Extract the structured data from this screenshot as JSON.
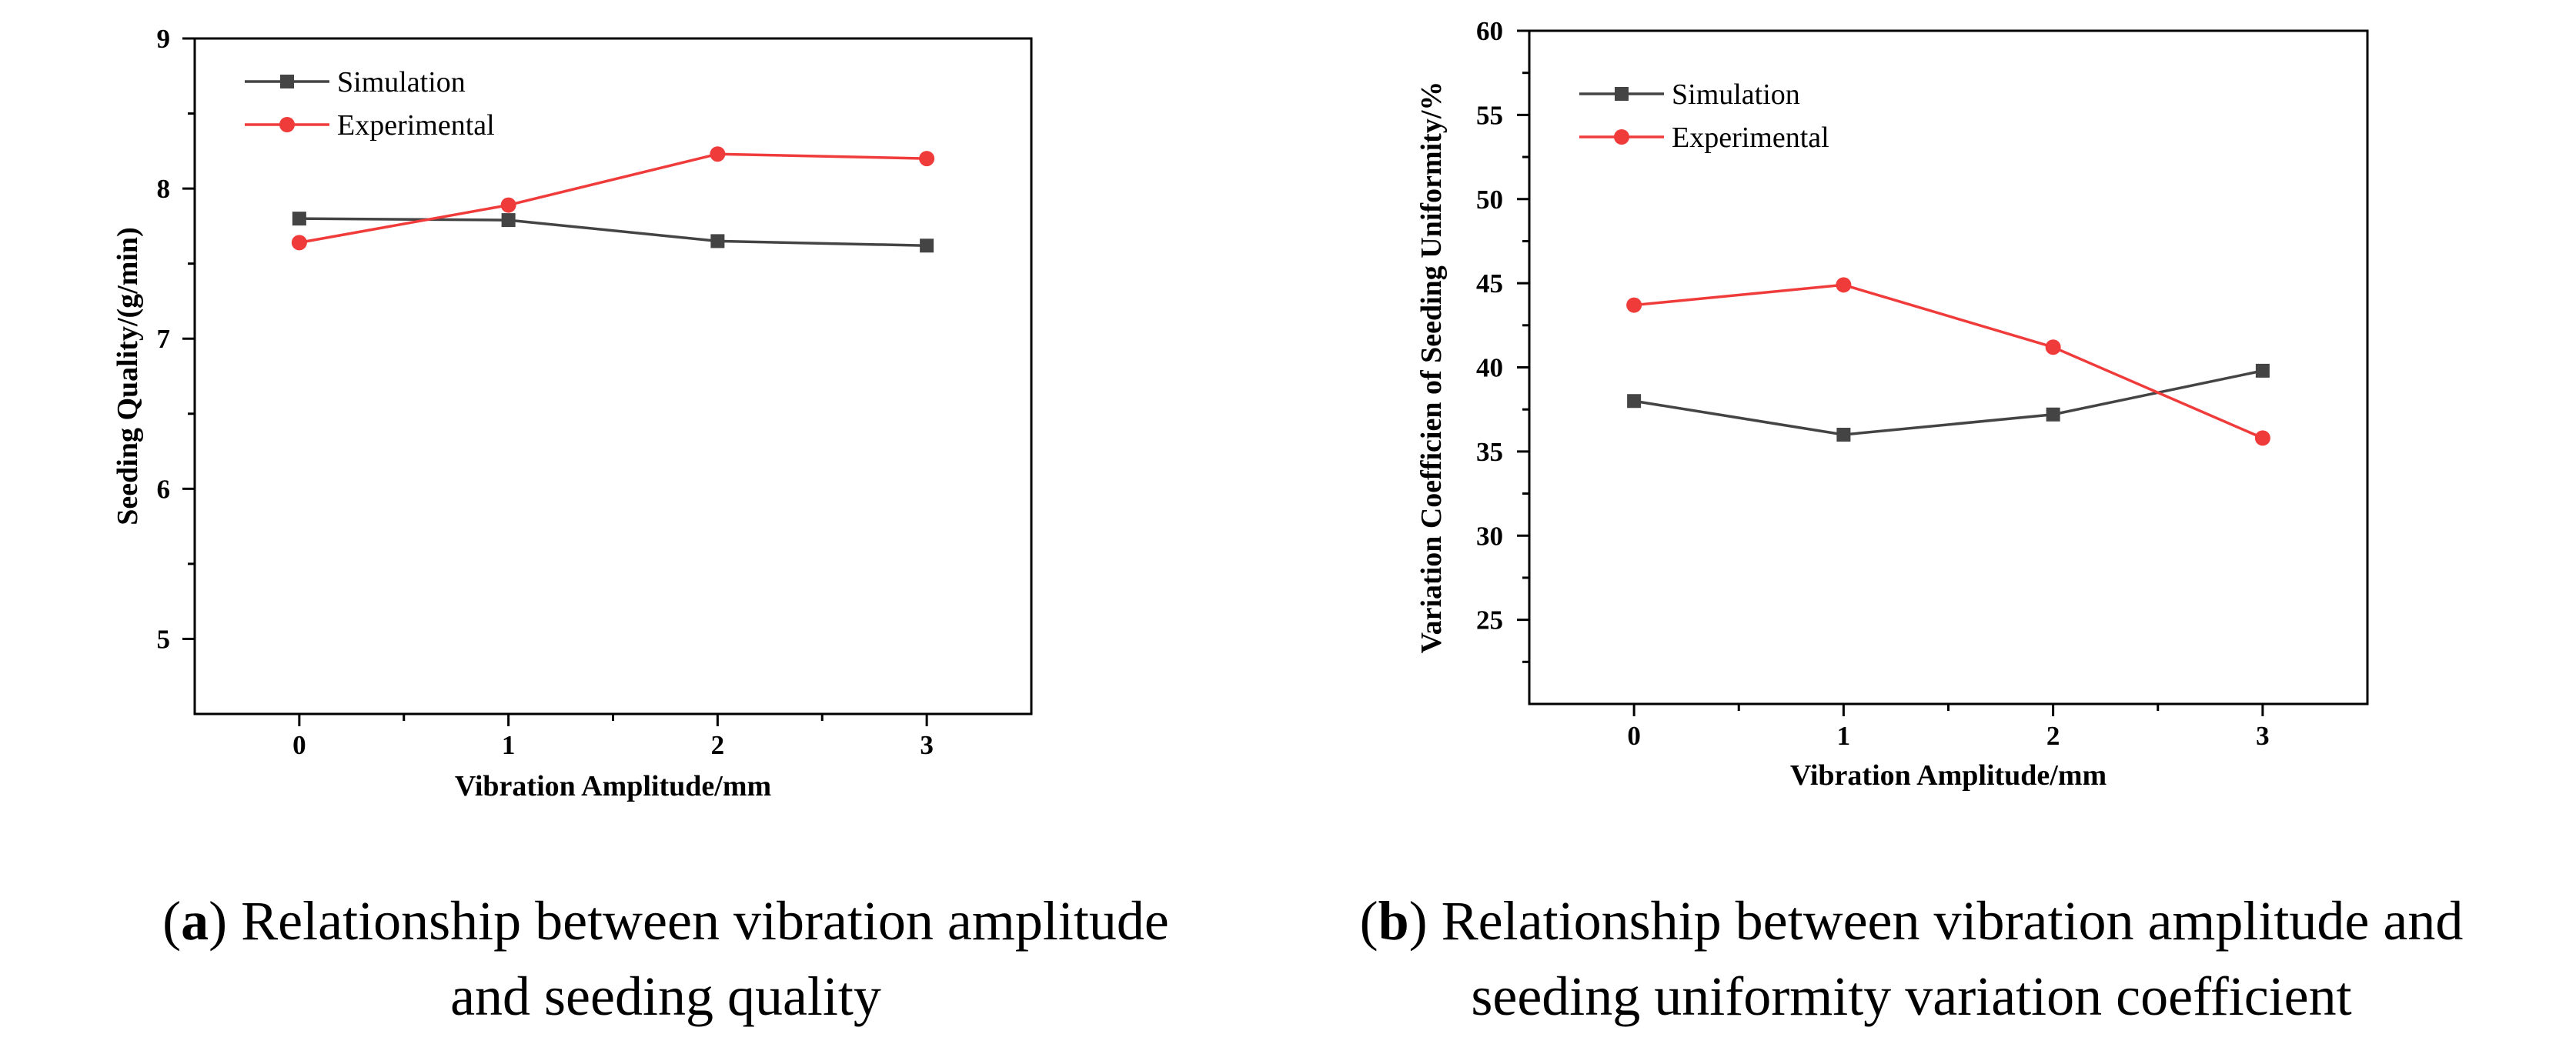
{
  "chart_data": [
    {
      "type": "line",
      "xlabel": "Vibration Amplitude/mm",
      "ylabel": "Seeding Quality/(g/min)",
      "categories": [
        "0",
        "1",
        "2",
        "3"
      ],
      "x": [
        0,
        1,
        2,
        3
      ],
      "xlim": [
        -0.5,
        3.5
      ],
      "ylim": [
        4.5,
        9
      ],
      "yticks": [
        "5",
        "6",
        "7",
        "8",
        "9"
      ],
      "grid": false,
      "legend_position": "top-left",
      "series": [
        {
          "name": "Simulation",
          "color": "#444444",
          "marker": "square",
          "values": [
            7.8,
            7.79,
            7.65,
            7.62
          ]
        },
        {
          "name": "Experimental",
          "color": "#f03b3b",
          "marker": "circle",
          "values": [
            7.64,
            7.89,
            8.23,
            8.2
          ]
        }
      ],
      "caption": {
        "letter": "a",
        "line1": "Relationship between vibration amplitude",
        "line2": "and seeding quality"
      }
    },
    {
      "type": "line",
      "xlabel": "Vibration Amplitude/mm",
      "ylabel": "Variation Coefficien of Seeding Uniformity/%",
      "categories": [
        "0",
        "1",
        "2",
        "3"
      ],
      "x": [
        0,
        1,
        2,
        3
      ],
      "xlim": [
        -0.5,
        3.5
      ],
      "ylim": [
        20,
        60
      ],
      "yticks": [
        "25",
        "30",
        "35",
        "40",
        "45",
        "50",
        "55",
        "60"
      ],
      "grid": false,
      "legend_position": "top-left",
      "series": [
        {
          "name": "Simulation",
          "color": "#444444",
          "marker": "square",
          "values": [
            38.0,
            36.0,
            37.2,
            39.8
          ]
        },
        {
          "name": "Experimental",
          "color": "#f03b3b",
          "marker": "circle",
          "values": [
            43.7,
            44.9,
            41.2,
            35.8
          ]
        }
      ],
      "caption": {
        "letter": "b",
        "line1": "Relationship between vibration amplitude and",
        "line2": "seeding uniformity variation coefficient"
      }
    }
  ]
}
